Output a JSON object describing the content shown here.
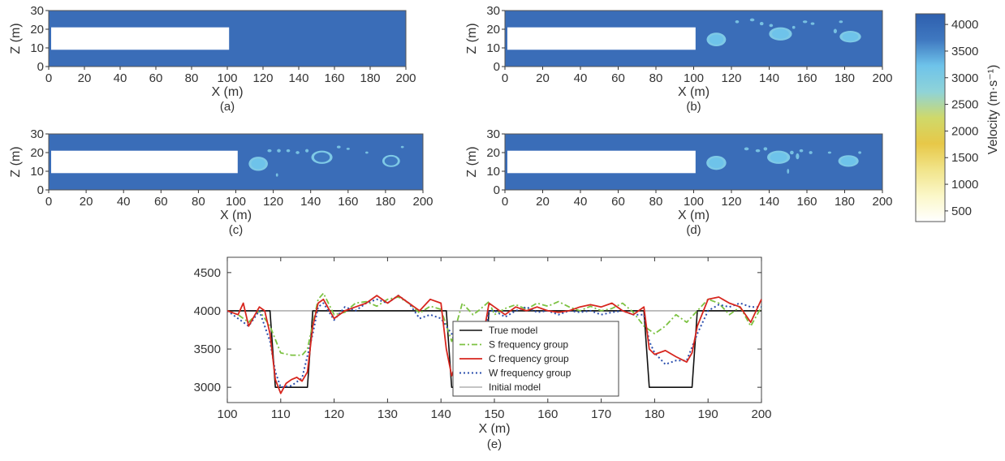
{
  "colors": {
    "background": "#3a6db8",
    "anomaly_light": "#7ec9e6",
    "anomaly_low": "#e9c84a",
    "true_model": "#111111",
    "s_group": "#7cc242",
    "c_group": "#d7261e",
    "w_group": "#2b4fae",
    "initial_model": "#b0b0b0"
  },
  "colorbar": {
    "label": "Velocity (m·s⁻¹)",
    "ticks": [
      4000,
      3500,
      3000,
      2500,
      2000,
      1500,
      1000,
      500
    ],
    "range": [
      300,
      4200
    ],
    "gradient": [
      "#ffffff",
      "#fbf7c8",
      "#f1e48a",
      "#e7c848",
      "#cfd96a",
      "#8fd3d8",
      "#6ec3ea",
      "#3f78c0",
      "#2e5fae"
    ]
  },
  "chart_data": [
    {
      "type": "heatmap",
      "caption": "(a)",
      "xlabel": "X (m)",
      "ylabel": "Z (m)",
      "xlim": [
        0,
        200
      ],
      "ylim": [
        0,
        30
      ],
      "xticks": [
        0,
        20,
        40,
        60,
        80,
        100,
        120,
        140,
        160,
        180,
        200
      ],
      "yticks": [
        0,
        10,
        20,
        30
      ],
      "tunnel": {
        "x": [
          0,
          101
        ],
        "z": [
          9,
          21
        ]
      },
      "anomalies": []
    },
    {
      "type": "heatmap",
      "caption": "(b)",
      "xlabel": "X (m)",
      "ylabel": "Z (m)",
      "xlim": [
        0,
        200
      ],
      "ylim": [
        0,
        30
      ],
      "xticks": [
        0,
        20,
        40,
        60,
        80,
        100,
        120,
        140,
        160,
        180,
        200
      ],
      "yticks": [
        0,
        10,
        20,
        30
      ],
      "tunnel": {
        "x": [
          0,
          101
        ],
        "z": [
          9,
          21
        ]
      },
      "anomalies": [
        {
          "x": 112,
          "z": 14.5,
          "rx": 3.8,
          "rz": 2.7,
          "velocity": 3050
        },
        {
          "x": 146,
          "z": 17.5,
          "rx": 4.5,
          "rz": 2.6,
          "velocity": 3250
        },
        {
          "x": 183,
          "z": 16,
          "rx": 4.2,
          "rz": 2.3,
          "velocity": 3300
        }
      ]
    },
    {
      "type": "heatmap",
      "caption": "(c)",
      "xlabel": "X (m)",
      "ylabel": "Z (m)",
      "xlim": [
        0,
        200
      ],
      "ylim": [
        0,
        30
      ],
      "xticks": [
        0,
        20,
        40,
        60,
        80,
        100,
        120,
        140,
        160,
        180,
        200
      ],
      "yticks": [
        0,
        10,
        20,
        30
      ],
      "tunnel": {
        "x": [
          0,
          101
        ],
        "z": [
          9,
          21
        ]
      },
      "anomalies": [
        {
          "x": 112,
          "z": 14,
          "rx": 3.8,
          "rz": 2.8,
          "velocity": 3100
        },
        {
          "x": 146,
          "z": 17.5,
          "rx": 4.2,
          "rz": 2.6,
          "velocity": 3600
        },
        {
          "x": 183,
          "z": 15.5,
          "rx": 3.5,
          "rz": 2.4,
          "velocity": 3650
        }
      ]
    },
    {
      "type": "heatmap",
      "caption": "(d)",
      "xlabel": "X (m)",
      "ylabel": "Z (m)",
      "xlim": [
        0,
        200
      ],
      "ylim": [
        0,
        30
      ],
      "xticks": [
        0,
        20,
        40,
        60,
        80,
        100,
        120,
        140,
        160,
        180,
        200
      ],
      "yticks": [
        0,
        10,
        20,
        30
      ],
      "tunnel": {
        "x": [
          0,
          101
        ],
        "z": [
          9,
          21
        ]
      },
      "anomalies": [
        {
          "x": 112,
          "z": 14.5,
          "rx": 3.9,
          "rz": 2.8,
          "velocity": 3050
        },
        {
          "x": 145,
          "z": 17.5,
          "rx": 4.5,
          "rz": 2.6,
          "velocity": 3200
        },
        {
          "x": 182,
          "z": 15.5,
          "rx": 4.0,
          "rz": 2.3,
          "velocity": 3250
        }
      ]
    },
    {
      "type": "line",
      "caption": "(e)",
      "xlabel": "X (m)",
      "ylabel": "",
      "xlim": [
        100,
        200
      ],
      "ylim": [
        2800,
        4700
      ],
      "xticks": [
        100,
        110,
        120,
        130,
        140,
        150,
        160,
        170,
        180,
        190,
        200
      ],
      "yticks": [
        3000,
        3500,
        4000,
        4500
      ],
      "legend_position": "center",
      "series": [
        {
          "name": "True model",
          "x": [
            100,
            108,
            109,
            115,
            116,
            141,
            142,
            148,
            149,
            178,
            179,
            187,
            188,
            200
          ],
          "y": [
            4000,
            4000,
            3000,
            3000,
            4000,
            4000,
            3000,
            3000,
            4000,
            4000,
            3000,
            3000,
            4000,
            4000
          ]
        },
        {
          "name": "S frequency group",
          "x": [
            100,
            102,
            104,
            106,
            108,
            110,
            112,
            114,
            115,
            117,
            118,
            120,
            122,
            124,
            126,
            128,
            130,
            132,
            134,
            136,
            138,
            140,
            142,
            144,
            146,
            147,
            149,
            150,
            152,
            154,
            156,
            158,
            160,
            162,
            164,
            166,
            168,
            170,
            172,
            174,
            176,
            178,
            180,
            182,
            184,
            186,
            188,
            190,
            192,
            194,
            196,
            198,
            200
          ],
          "y": [
            4000,
            3950,
            3850,
            4000,
            3800,
            3450,
            3420,
            3420,
            3500,
            4150,
            4230,
            3950,
            3980,
            4100,
            4120,
            4060,
            4150,
            4180,
            4100,
            3970,
            4060,
            4020,
            3600,
            4100,
            3950,
            4000,
            4120,
            3950,
            4030,
            4080,
            4020,
            4100,
            4060,
            4120,
            4050,
            4000,
            4060,
            4000,
            4030,
            4100,
            3980,
            3800,
            3700,
            3800,
            3950,
            3850,
            4000,
            4150,
            4100,
            3950,
            4050,
            3800,
            4050
          ]
        },
        {
          "name": "C frequency group",
          "x": [
            100,
            102,
            103,
            104,
            106,
            107,
            108,
            109,
            110,
            111,
            112,
            113,
            114,
            115,
            116,
            117,
            118,
            120,
            122,
            124,
            126,
            128,
            130,
            132,
            134,
            136,
            138,
            140,
            141,
            142,
            143,
            144,
            145,
            146,
            147,
            148,
            149,
            150,
            152,
            154,
            156,
            158,
            160,
            162,
            164,
            166,
            168,
            170,
            172,
            174,
            176,
            178,
            179,
            180,
            182,
            184,
            186,
            187,
            188,
            190,
            192,
            194,
            196,
            198,
            200
          ],
          "y": [
            4000,
            3950,
            4100,
            3800,
            4050,
            4000,
            3700,
            3100,
            2920,
            3050,
            3100,
            3130,
            3080,
            3200,
            3800,
            4100,
            4150,
            3900,
            4000,
            4050,
            4100,
            4200,
            4100,
            4200,
            4100,
            4000,
            4150,
            4100,
            3500,
            3150,
            3350,
            3500,
            3400,
            3450,
            3200,
            3700,
            4100,
            4050,
            3950,
            4050,
            4000,
            4050,
            4000,
            3980,
            4000,
            4050,
            4080,
            4050,
            4100,
            4000,
            3950,
            4050,
            3500,
            3430,
            3480,
            3400,
            3330,
            3450,
            3800,
            4150,
            4180,
            4100,
            4050,
            3850,
            4150
          ]
        },
        {
          "name": "W frequency group",
          "x": [
            100,
            102,
            104,
            106,
            108,
            109,
            110,
            112,
            114,
            116,
            117,
            118,
            120,
            122,
            124,
            126,
            128,
            130,
            132,
            134,
            136,
            138,
            140,
            142,
            144,
            145,
            146,
            147,
            148,
            149,
            150,
            152,
            154,
            156,
            158,
            160,
            162,
            164,
            166,
            168,
            170,
            172,
            174,
            176,
            178,
            179,
            180,
            182,
            184,
            186,
            188,
            190,
            192,
            194,
            196,
            198,
            200
          ],
          "y": [
            4000,
            3900,
            3800,
            4000,
            3600,
            3200,
            3000,
            3020,
            3120,
            3700,
            4050,
            4100,
            3880,
            4050,
            4000,
            4100,
            4150,
            4100,
            4200,
            4100,
            3900,
            3950,
            3900,
            3700,
            3300,
            3550,
            3400,
            3200,
            3600,
            4000,
            4000,
            3920,
            4000,
            4050,
            3980,
            4000,
            3950,
            4000,
            3980,
            4000,
            3950,
            3980,
            4000,
            3950,
            3950,
            3600,
            3450,
            3300,
            3350,
            3350,
            3700,
            4000,
            4080,
            4050,
            4100,
            4050,
            4050
          ]
        },
        {
          "name": "Initial model",
          "x": [
            100,
            200
          ],
          "y": [
            4000,
            4000
          ]
        }
      ]
    }
  ]
}
